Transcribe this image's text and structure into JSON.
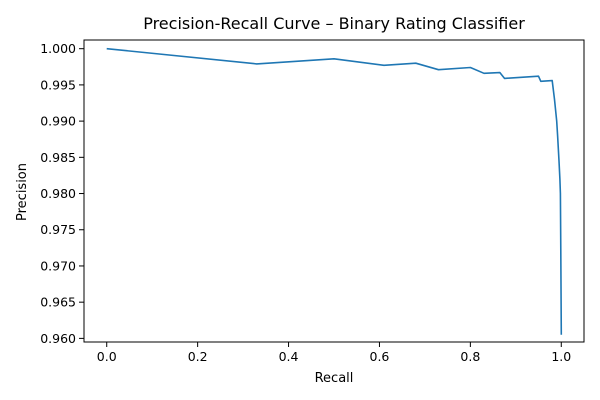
{
  "chart_data": {
    "type": "line",
    "title": "Precision-Recall Curve – Binary Rating Classifier",
    "xlabel": "Recall",
    "ylabel": "Precision",
    "xlim": [
      -0.05,
      1.05
    ],
    "ylim": [
      0.9595,
      1.0012
    ],
    "grid": false,
    "legend": "none",
    "line_color": "#1f77b4",
    "xticks": [
      0.0,
      0.2,
      0.4,
      0.6,
      0.8,
      1.0
    ],
    "xtick_labels": [
      "0.0",
      "0.2",
      "0.4",
      "0.6",
      "0.8",
      "1.0"
    ],
    "yticks": [
      0.96,
      0.965,
      0.97,
      0.975,
      0.98,
      0.985,
      0.99,
      0.995,
      1.0
    ],
    "ytick_labels": [
      "0.960",
      "0.965",
      "0.970",
      "0.975",
      "0.980",
      "0.985",
      "0.990",
      "0.995",
      "1.000"
    ],
    "series": [
      {
        "x": [
          0.0,
          0.33,
          0.5,
          0.61,
          0.68,
          0.73,
          0.8,
          0.83,
          0.865,
          0.875,
          0.95,
          0.955,
          0.98,
          0.985,
          0.99,
          0.992,
          0.995,
          0.997,
          0.998,
          0.999,
          1.0
        ],
        "y": [
          1.0,
          0.9979,
          0.9986,
          0.9977,
          0.998,
          0.9971,
          0.9974,
          0.9966,
          0.9967,
          0.9959,
          0.9962,
          0.9955,
          0.9956,
          0.993,
          0.99,
          0.988,
          0.9845,
          0.982,
          0.98,
          0.972,
          0.9605
        ]
      }
    ]
  }
}
